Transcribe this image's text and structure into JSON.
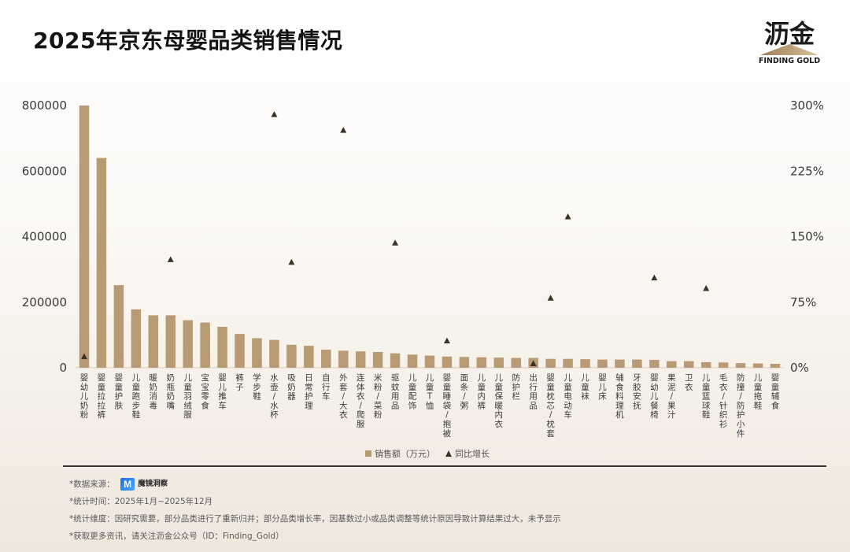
{
  "title": "2025年京东母婴品类销售情况",
  "logo": {
    "cn": "沥金",
    "en": "FINDING GOLD"
  },
  "chart_data": {
    "type": "bar",
    "categories": [
      "婴幼儿奶粉",
      "婴童拉拉裤",
      "婴童护肤",
      "儿童跑步鞋",
      "暖奶消毒",
      "奶瓶奶嘴",
      "儿童羽绒服",
      "宝宝零食",
      "婴儿推车",
      "裤子",
      "学步鞋",
      "水壶/水杯",
      "吸奶器",
      "日常护理",
      "自行车",
      "外套/大衣",
      "连体衣/爬服",
      "米粉/菜粉",
      "驱蚊用品",
      "儿童配饰",
      "儿童T恤",
      "婴童睡袋/抱被",
      "面条/粥",
      "儿童内裤",
      "儿童保暖内衣",
      "防护栏",
      "出行用品",
      "婴童枕芯/枕套",
      "儿童电动车",
      "儿童袜",
      "婴儿床",
      "辅食料理机",
      "牙胶安抚",
      "婴幼儿餐椅",
      "果泥/果汁",
      "卫衣",
      "儿童篮球鞋",
      "毛衣/针织衫",
      "防撞/防护小件",
      "儿童拖鞋",
      "婴童辅食"
    ],
    "series": [
      {
        "name": "销售额（万元）",
        "axis": "left",
        "values": [
          800000,
          640000,
          252000,
          178000,
          160000,
          160000,
          145000,
          138000,
          125000,
          103000,
          90000,
          85000,
          70000,
          67000,
          55000,
          52000,
          50000,
          48000,
          44000,
          40000,
          37000,
          34000,
          33000,
          32000,
          31000,
          30000,
          30000,
          27000,
          27000,
          26000,
          25000,
          25000,
          25000,
          24000,
          20000,
          20000,
          17000,
          16000,
          14000,
          13000,
          12000
        ]
      },
      {
        "name": "同比增长",
        "axis": "right",
        "unit": "%",
        "values": [
          13,
          null,
          null,
          null,
          null,
          124,
          null,
          null,
          null,
          null,
          null,
          290,
          121,
          null,
          null,
          272,
          null,
          null,
          143,
          null,
          null,
          31,
          null,
          null,
          null,
          null,
          5,
          80,
          173,
          null,
          null,
          null,
          null,
          103,
          null,
          null,
          91,
          null,
          null,
          null,
          null
        ]
      }
    ],
    "yleft": {
      "ticks": [
        "800000",
        "600000",
        "400000",
        "200000",
        "0"
      ],
      "ylim": [
        0,
        800000
      ]
    },
    "yright": {
      "ticks": [
        "300%",
        "225%",
        "150%",
        "75%",
        "0%"
      ],
      "ylim": [
        0,
        300
      ]
    },
    "colors": {
      "bar": "#b89b74",
      "marker": "#3a3325"
    },
    "legend": {
      "placement": "bottom-center",
      "items": [
        "销售额（万元）",
        "同比增长"
      ]
    }
  },
  "notes": {
    "source_label": "*数据来源：",
    "source_name": "魔镜洞察",
    "time": "*统计时间：2025年1月~2025年12月",
    "dimension": "*统计维度：因研究需要，部分品类进行了重新归并；部分品类增长率，因基数过小或品类调整等统计原因导致计算结果过大，未予显示",
    "more": "*获取更多资讯，请关注沥金公众号（ID：Finding_Gold）"
  }
}
